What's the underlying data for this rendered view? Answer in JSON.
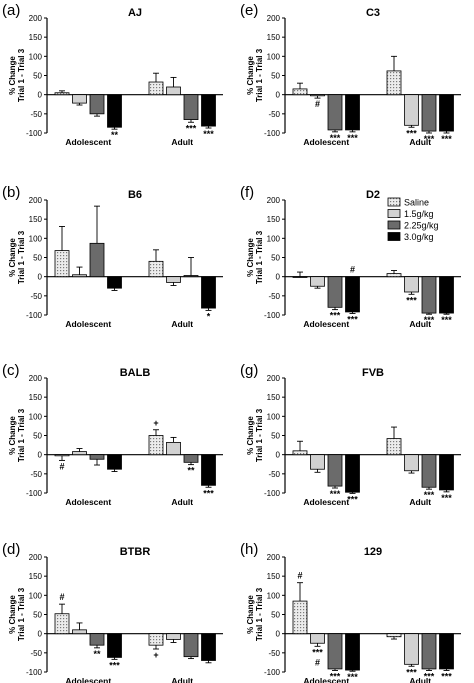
{
  "colors": {
    "saline": "#e6e6e6",
    "dose_1_5": "#d2d2d2",
    "dose_2_25": "#6b6b6b",
    "dose_3_0": "#000000",
    "axis": "#000000"
  },
  "legend": {
    "entries": [
      "Saline",
      "1.5g/kg",
      "2.25g/kg",
      "3.0g/kg"
    ]
  },
  "chart_data": [
    {
      "panel": "(a)",
      "title": "AJ",
      "type": "bar",
      "ylabel": [
        "% Change",
        "Trial 1 - Trial 3"
      ],
      "ylim": [
        -100,
        200
      ],
      "yticks": [
        "200",
        "150",
        "100",
        "50",
        "0",
        "-50",
        "-100"
      ],
      "groups": [
        "Adolescent",
        "Adult"
      ],
      "series": [
        {
          "name": "Saline",
          "values": [
            5,
            33
          ],
          "errors": [
            5,
            23
          ]
        },
        {
          "name": "1.5g/kg",
          "values": [
            -22,
            20
          ],
          "errors": [
            5,
            25
          ]
        },
        {
          "name": "2.25g/kg",
          "values": [
            -50,
            -65
          ],
          "errors": [
            6,
            7
          ]
        },
        {
          "name": "3.0g/kg",
          "values": [
            -85,
            -82
          ],
          "errors": [
            5,
            5
          ]
        }
      ],
      "annotations": [
        {
          "group": 0,
          "bar": 3,
          "text": "**"
        },
        {
          "group": 1,
          "bar": 2,
          "text": "***"
        },
        {
          "group": 1,
          "bar": 3,
          "text": "***"
        }
      ]
    },
    {
      "panel": "(b)",
      "title": "B6",
      "type": "bar",
      "ylabel": [
        "% Change",
        "Trial 1 - Trial 3"
      ],
      "ylim": [
        -100,
        200
      ],
      "yticks": [
        "200",
        "150",
        "100",
        "50",
        "0",
        "-50",
        "-100"
      ],
      "groups": [
        "Adolescent",
        "Adult"
      ],
      "series": [
        {
          "name": "Saline",
          "values": [
            68,
            40
          ],
          "errors": [
            63,
            30
          ]
        },
        {
          "name": "1.5g/kg",
          "values": [
            5,
            -15
          ],
          "errors": [
            20,
            8
          ]
        },
        {
          "name": "2.25g/kg",
          "values": [
            87,
            3
          ],
          "errors": [
            97,
            47
          ]
        },
        {
          "name": "3.0g/kg",
          "values": [
            -30,
            -82
          ],
          "errors": [
            6,
            6
          ]
        }
      ],
      "annotations": [
        {
          "group": 1,
          "bar": 3,
          "text": "*"
        }
      ]
    },
    {
      "panel": "(c)",
      "title": "BALB",
      "type": "bar",
      "ylabel": [
        "% Change",
        "Trial 1 - Trial 3"
      ],
      "ylim": [
        -100,
        200
      ],
      "yticks": [
        "200",
        "150",
        "100",
        "50",
        "0",
        "-50",
        "-100"
      ],
      "groups": [
        "Adolescent",
        "Adult"
      ],
      "series": [
        {
          "name": "Saline",
          "values": [
            -3,
            50
          ],
          "errors": [
            12,
            15
          ]
        },
        {
          "name": "1.5g/kg",
          "values": [
            8,
            32
          ],
          "errors": [
            8,
            13
          ]
        },
        {
          "name": "2.25g/kg",
          "values": [
            -12,
            -20
          ],
          "errors": [
            15,
            6
          ]
        },
        {
          "name": "3.0g/kg",
          "values": [
            -38,
            -80
          ],
          "errors": [
            6,
            5
          ]
        }
      ],
      "annotations": [
        {
          "group": 0,
          "bar": 0,
          "text": "#"
        },
        {
          "group": 1,
          "bar": 0,
          "text": "+",
          "above": true
        },
        {
          "group": 1,
          "bar": 2,
          "text": "**"
        },
        {
          "group": 1,
          "bar": 3,
          "text": "***"
        }
      ]
    },
    {
      "panel": "(d)",
      "title": "BTBR",
      "type": "bar",
      "ylabel": [
        "% Change",
        "Trial 1 - Trial 3"
      ],
      "ylim": [
        -100,
        200
      ],
      "yticks": [
        "200",
        "150",
        "100",
        "50",
        "0",
        "-50",
        "-100"
      ],
      "groups": [
        "Adolescent",
        "Adult"
      ],
      "series": [
        {
          "name": "Saline",
          "values": [
            52,
            -30
          ],
          "errors": [
            25,
            10
          ]
        },
        {
          "name": "1.5g/kg",
          "values": [
            10,
            -15
          ],
          "errors": [
            18,
            8
          ]
        },
        {
          "name": "2.25g/kg",
          "values": [
            -30,
            -60
          ],
          "errors": [
            7,
            5
          ]
        },
        {
          "name": "3.0g/kg",
          "values": [
            -62,
            -70
          ],
          "errors": [
            5,
            6
          ]
        }
      ],
      "annotations": [
        {
          "group": 0,
          "bar": 0,
          "text": "#",
          "above": true
        },
        {
          "group": 0,
          "bar": 2,
          "text": "**"
        },
        {
          "group": 0,
          "bar": 3,
          "text": "***"
        },
        {
          "group": 1,
          "bar": 0,
          "text": "+"
        }
      ]
    },
    {
      "panel": "(e)",
      "title": "C3",
      "type": "bar",
      "ylabel": [
        "% Change",
        "Trial 1 - Trial 3"
      ],
      "ylim": [
        -100,
        200
      ],
      "yticks": [
        "200",
        "150",
        "100",
        "50",
        "0",
        "-50",
        "-100"
      ],
      "groups": [
        "Adolescent",
        "Adult"
      ],
      "series": [
        {
          "name": "Saline",
          "values": [
            15,
            62
          ],
          "errors": [
            15,
            38
          ]
        },
        {
          "name": "1.5g/kg",
          "values": [
            -3,
            -80
          ],
          "errors": [
            6,
            5
          ]
        },
        {
          "name": "2.25g/kg",
          "values": [
            -92,
            -95
          ],
          "errors": [
            5,
            5
          ]
        },
        {
          "name": "3.0g/kg",
          "values": [
            -92,
            -95
          ],
          "errors": [
            5,
            5
          ]
        }
      ],
      "annotations": [
        {
          "group": 0,
          "bar": 1,
          "text": "#"
        },
        {
          "group": 0,
          "bar": 2,
          "text": "***"
        },
        {
          "group": 0,
          "bar": 3,
          "text": "***"
        },
        {
          "group": 1,
          "bar": 1,
          "text": "***"
        },
        {
          "group": 1,
          "bar": 2,
          "text": "***"
        },
        {
          "group": 1,
          "bar": 3,
          "text": "***"
        }
      ]
    },
    {
      "panel": "(f)",
      "title": "D2",
      "type": "bar",
      "ylabel": [
        "% Change",
        "Trial 1 - Trial 3"
      ],
      "ylim": [
        -100,
        200
      ],
      "yticks": [
        "200",
        "150",
        "100",
        "50",
        "0",
        "-50",
        "-100"
      ],
      "groups": [
        "Adolescent",
        "Adult"
      ],
      "series": [
        {
          "name": "Saline",
          "values": [
            0,
            8
          ],
          "errors": [
            12,
            8
          ]
        },
        {
          "name": "1.5g/kg",
          "values": [
            -25,
            -40
          ],
          "errors": [
            5,
            6
          ]
        },
        {
          "name": "2.25g/kg",
          "values": [
            -80,
            -95
          ],
          "errors": [
            6,
            3
          ]
        },
        {
          "name": "3.0g/kg",
          "values": [
            -92,
            -95
          ],
          "errors": [
            4,
            3
          ]
        }
      ],
      "annotations": [
        {
          "group": 0,
          "bar": 2,
          "text": "***"
        },
        {
          "group": 0,
          "bar": 3,
          "text": "***"
        },
        {
          "group": 0,
          "bar": 3,
          "text": "#",
          "above": true
        },
        {
          "group": 1,
          "bar": 1,
          "text": "***"
        },
        {
          "group": 1,
          "bar": 2,
          "text": "***"
        },
        {
          "group": 1,
          "bar": 3,
          "text": "***"
        }
      ]
    },
    {
      "panel": "(g)",
      "title": "FVB",
      "type": "bar",
      "ylabel": [
        "% Change",
        "Trial 1 - Trial 3"
      ],
      "ylim": [
        -100,
        200
      ],
      "yticks": [
        "200",
        "150",
        "100",
        "50",
        "0",
        "-50",
        "-100"
      ],
      "groups": [
        "Adolescent",
        "Adult"
      ],
      "series": [
        {
          "name": "Saline",
          "values": [
            10,
            42
          ],
          "errors": [
            25,
            30
          ]
        },
        {
          "name": "1.5g/kg",
          "values": [
            -38,
            -42
          ],
          "errors": [
            8,
            6
          ]
        },
        {
          "name": "2.25g/kg",
          "values": [
            -82,
            -85
          ],
          "errors": [
            5,
            5
          ]
        },
        {
          "name": "3.0g/kg",
          "values": [
            -98,
            -92
          ],
          "errors": [
            3,
            5
          ]
        }
      ],
      "annotations": [
        {
          "group": 0,
          "bar": 2,
          "text": "***"
        },
        {
          "group": 0,
          "bar": 3,
          "text": "***"
        },
        {
          "group": 1,
          "bar": 2,
          "text": "***"
        },
        {
          "group": 1,
          "bar": 3,
          "text": "***"
        }
      ]
    },
    {
      "panel": "(h)",
      "title": "129",
      "type": "bar",
      "ylabel": [
        "% Change",
        "Trial 1 - Trial 3"
      ],
      "ylim": [
        -100,
        200
      ],
      "yticks": [
        "200",
        "150",
        "100",
        "50",
        "0",
        "-50",
        "-100"
      ],
      "groups": [
        "Adolescent",
        "Adult"
      ],
      "series": [
        {
          "name": "Saline",
          "values": [
            85,
            -8
          ],
          "errors": [
            48,
            6
          ]
        },
        {
          "name": "1.5g/kg",
          "values": [
            -25,
            -80
          ],
          "errors": [
            8,
            5
          ]
        },
        {
          "name": "2.25g/kg",
          "values": [
            -92,
            -92
          ],
          "errors": [
            4,
            4
          ]
        },
        {
          "name": "3.0g/kg",
          "values": [
            -95,
            -92
          ],
          "errors": [
            3,
            4
          ]
        }
      ],
      "annotations": [
        {
          "group": 0,
          "bar": 0,
          "text": "#",
          "above": true
        },
        {
          "group": 0,
          "bar": 1,
          "text": "***"
        },
        {
          "group": 0,
          "bar": 1,
          "text": "#",
          "low": true
        },
        {
          "group": 0,
          "bar": 2,
          "text": "***"
        },
        {
          "group": 0,
          "bar": 3,
          "text": "***"
        },
        {
          "group": 1,
          "bar": 1,
          "text": "***"
        },
        {
          "group": 1,
          "bar": 2,
          "text": "***"
        },
        {
          "group": 1,
          "bar": 3,
          "text": "***"
        }
      ]
    }
  ]
}
